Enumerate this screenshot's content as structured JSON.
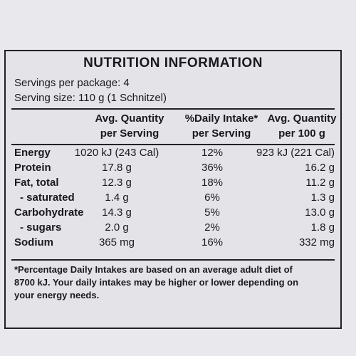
{
  "panel": {
    "title": "NUTRITION INFORMATION",
    "servings_per_package": "Servings per package: 4",
    "serving_size": "Serving size: 110 g (1 Schnitzel)"
  },
  "columns": {
    "c1_line1": "Avg. Quantity",
    "c1_line2": "per Serving",
    "c2_line1": "%Daily Intake*",
    "c2_line2": "per Serving",
    "c3_line1": "Avg. Quantity",
    "c3_line2": "per 100 g"
  },
  "rows": [
    {
      "label": "Energy",
      "per_serving": "1020 kJ (243 Cal)",
      "daily_intake": "12%",
      "per_100g": "923 kJ (221 Cal)"
    },
    {
      "label": "Protein",
      "per_serving": "17.8 g",
      "daily_intake": "36%",
      "per_100g": "16.2 g"
    },
    {
      "label": "Fat, total",
      "per_serving": "12.3 g",
      "daily_intake": "18%",
      "per_100g": "11.2 g"
    },
    {
      "label": "- saturated",
      "per_serving": "1.4 g",
      "daily_intake": "6%",
      "per_100g": "1.3 g"
    },
    {
      "label": "Carbohydrate",
      "per_serving": "14.3 g",
      "daily_intake": "5%",
      "per_100g": "13.0 g"
    },
    {
      "label": "- sugars",
      "per_serving": "2.0 g",
      "daily_intake": "2%",
      "per_100g": "1.8 g"
    },
    {
      "label": "Sodium",
      "per_serving": "365 mg",
      "daily_intake": "16%",
      "per_100g": "332 mg"
    }
  ],
  "footnote": {
    "line1": "*Percentage Daily Intakes are based on an average adult diet of",
    "line2": "8700 kJ. Your daily intakes may be higher or lower depending on",
    "line3": "your energy needs."
  }
}
